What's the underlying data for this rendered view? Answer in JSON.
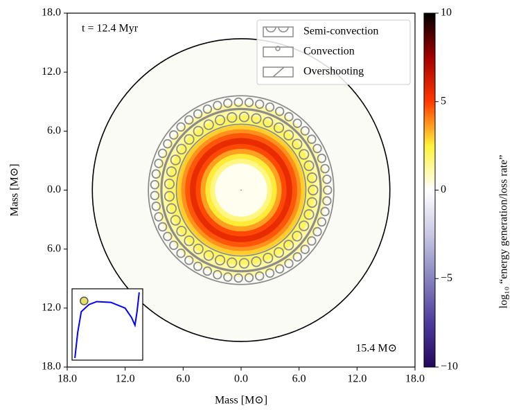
{
  "chart_data": {
    "type": "tulips",
    "title": "t = 12.4 Myr",
    "xlabel": "Mass [M⊙]",
    "ylabel": "Mass [M⊙]",
    "xlim": [
      -18,
      18
    ],
    "ylim": [
      -18,
      18
    ],
    "xticks": [
      {
        "value": -18,
        "label": "18.0"
      },
      {
        "value": -12,
        "label": "12.0"
      },
      {
        "value": -6,
        "label": "6.0"
      },
      {
        "value": 0,
        "label": "0.0"
      },
      {
        "value": 6,
        "label": "6.0"
      },
      {
        "value": 12,
        "label": "12.0"
      },
      {
        "value": 18,
        "label": "18.0"
      }
    ],
    "yticks": [
      {
        "value": -18,
        "label": "18.0"
      },
      {
        "value": -12,
        "label": "12.0"
      },
      {
        "value": -6,
        "label": "6.0"
      },
      {
        "value": 0,
        "label": "0.0"
      },
      {
        "value": 6,
        "label": "6.0"
      },
      {
        "value": 12,
        "label": "12.0"
      },
      {
        "value": 18,
        "label": "18.0"
      }
    ],
    "star_mass": 15.4,
    "star_mass_label": "15.4 M⊙",
    "star_color": "#fbfbf6",
    "rings": [
      {
        "r": 8.8,
        "value": 1.2
      },
      {
        "r": 7.6,
        "value": 2.0
      },
      {
        "r": 6.6,
        "value": 3.0
      },
      {
        "r": 6.2,
        "value": 3.8
      },
      {
        "r": 5.8,
        "value": 4.6
      },
      {
        "r": 5.3,
        "value": 5.6
      },
      {
        "r": 4.7,
        "value": 4.8
      },
      {
        "r": 4.2,
        "value": 3.6
      },
      {
        "r": 3.7,
        "value": 2.6
      },
      {
        "r": 3.2,
        "value": 1.6
      },
      {
        "r": 2.7,
        "value": 0.2
      }
    ],
    "mixing": [
      {
        "name": "Semi-convection",
        "zones": [
          [
            8.3,
            9.6
          ],
          [
            6.7,
            8.2
          ]
        ]
      },
      {
        "name": "Convection",
        "zones": []
      },
      {
        "name": "Overshooting",
        "zones": []
      }
    ],
    "zone_color": "#8c8c8c",
    "legend_loc": "upper right",
    "colorbar": {
      "label": "log₁₀ “energy generation/loss rate”",
      "lim": [
        -10,
        10
      ],
      "ticks": [
        {
          "value": 10,
          "label": "10"
        },
        {
          "value": 5,
          "label": "5"
        },
        {
          "value": 0,
          "label": "0"
        },
        {
          "value": -5,
          "label": "−5"
        },
        {
          "value": -10,
          "label": "−10"
        }
      ],
      "colors": [
        "#22085f",
        "#4d3b9b",
        "#8783bf",
        "#c9c8e4",
        "#ffffff",
        "#fff23a",
        "#ff3a00",
        "#a30000",
        "#000000"
      ]
    },
    "inset": {
      "x": [
        0.04,
        0.08,
        0.13,
        0.24,
        0.35,
        0.55,
        0.75,
        0.84,
        0.89,
        0.92,
        0.95
      ],
      "y": [
        0.03,
        0.39,
        0.68,
        0.78,
        0.82,
        0.81,
        0.73,
        0.6,
        0.49,
        0.68,
        0.95
      ],
      "color": "#0000ff",
      "marker_x": 0.17,
      "marker_y": 0.83,
      "marker_color": "#e8de6a"
    }
  }
}
